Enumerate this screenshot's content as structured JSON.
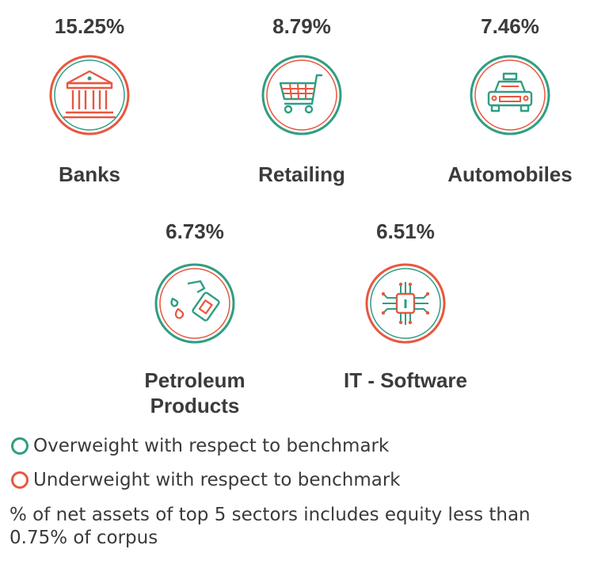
{
  "colors": {
    "overweight": "#2e9e83",
    "underweight": "#e8573f"
  },
  "sectors": [
    {
      "pct": "15.25%",
      "name": "Banks",
      "status": "underweight",
      "icon": "bank-building-icon"
    },
    {
      "pct": "8.79%",
      "name": "Retailing",
      "status": "overweight",
      "icon": "shopping-cart-icon"
    },
    {
      "pct": "7.46%",
      "name": "Automobiles",
      "status": "overweight",
      "icon": "taxi-car-icon"
    },
    {
      "pct": "6.73%",
      "name": "Petroleum\nProducts",
      "status": "overweight",
      "icon": "fuel-nozzle-icon"
    },
    {
      "pct": "6.51%",
      "name": "IT - Software",
      "status": "underweight",
      "icon": "cpu-chip-icon"
    }
  ],
  "chart_data": {
    "type": "table",
    "columns": [
      "sector",
      "percent_of_net_assets",
      "benchmark_position"
    ],
    "rows": [
      [
        "Banks",
        15.25,
        "Underweight"
      ],
      [
        "Retailing",
        8.79,
        "Overweight"
      ],
      [
        "Automobiles",
        7.46,
        "Overweight"
      ],
      [
        "Petroleum Products",
        6.73,
        "Overweight"
      ],
      [
        "IT - Software",
        6.51,
        "Underweight"
      ]
    ]
  },
  "legend": {
    "overweight": "Overweight with respect to benchmark",
    "underweight": "Underweight with respect to benchmark"
  },
  "footnote": "% of net assets of top 5 sectors includes equity less than 0.75% of corpus"
}
